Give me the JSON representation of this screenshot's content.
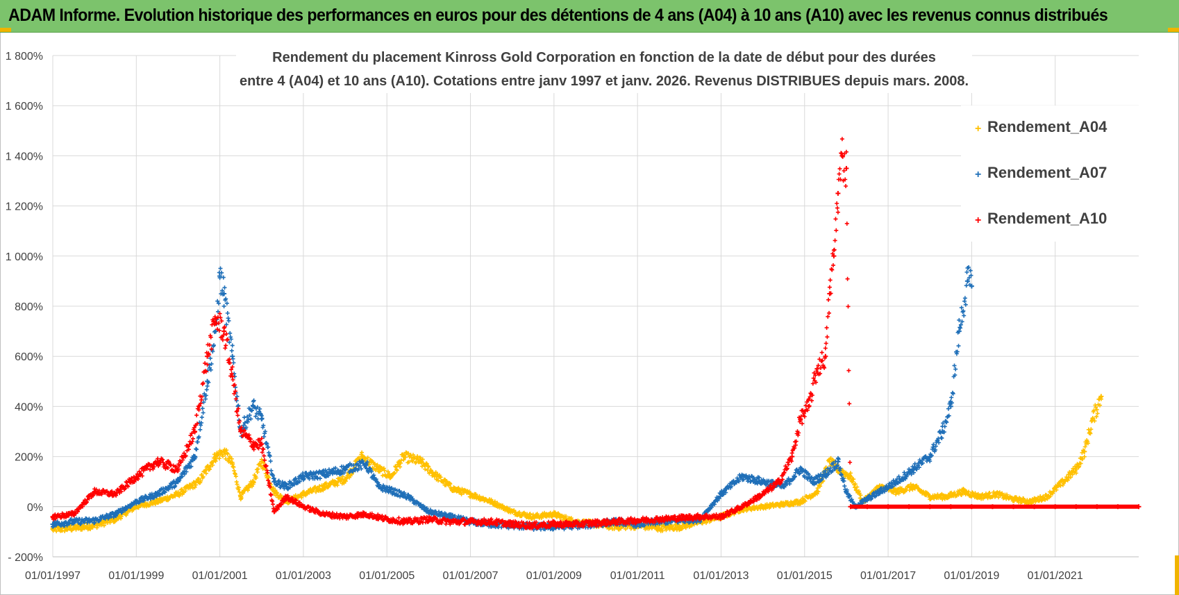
{
  "banner": {
    "title": "ADAM Informe. Evolution historique des performances en euros pour des détentions de 4 ans (A04) à 10 ans (A10) avec les revenus connus distribués"
  },
  "colors": {
    "banner": "#7cc36c",
    "corner": "#f0b400",
    "A04": "#ffc000",
    "A07": "#1f6fb8",
    "A10": "#ff0000",
    "grid": "#d9d9d9",
    "text": "#404040"
  },
  "chart_data": {
    "type": "scatter",
    "title_line1": "Rendement du placement Kinross Gold Corporation en fonction de la date de début pour des durées",
    "title_line2": "entre 4 (A04) et 10 ans (A10).  Cotations entre janv 1997 et janv. 2026. Revenus DISTRIBUES depuis mars. 2008.",
    "xlabel": "",
    "ylabel": "",
    "xlim": [
      1997.0,
      2023.0
    ],
    "ylim": [
      -200,
      1800
    ],
    "y_ticks": [
      -200,
      0,
      200,
      400,
      600,
      800,
      1000,
      1200,
      1400,
      1600,
      1800
    ],
    "y_tick_labels": [
      "- 200%",
      "0%",
      "200%",
      "400%",
      "600%",
      "800%",
      "1 000%",
      "1 200%",
      "1 400%",
      "1 600%",
      "1 800%"
    ],
    "x_ticks": [
      1997,
      1999,
      2001,
      2003,
      2005,
      2007,
      2009,
      2011,
      2013,
      2015,
      2017,
      2019,
      2021
    ],
    "x_tick_labels": [
      "01/01/1997",
      "01/01/1999",
      "01/01/2001",
      "01/01/2003",
      "01/01/2005",
      "01/01/2007",
      "01/01/2009",
      "01/01/2011",
      "01/01/2013",
      "01/01/2015",
      "01/01/2017",
      "01/01/2019",
      "01/01/2021"
    ],
    "legend_position": "right",
    "series": [
      {
        "name": "Rendement_A04",
        "marker": "+",
        "x": [
          1997.0,
          1997.5,
          1998.0,
          1998.5,
          1998.8,
          1999.0,
          1999.5,
          2000.0,
          2000.5,
          2000.9,
          2001.1,
          2001.3,
          2001.5,
          2001.8,
          2002.0,
          2002.3,
          2002.6,
          2003.0,
          2003.5,
          2004.0,
          2004.4,
          2004.8,
          2005.1,
          2005.4,
          2005.8,
          2006.2,
          2006.6,
          2007.0,
          2007.5,
          2008.0,
          2008.5,
          2009.0,
          2009.5,
          2010.0,
          2010.5,
          2011.0,
          2011.5,
          2012.0,
          2012.5,
          2013.0,
          2013.5,
          2014.0,
          2014.5,
          2014.9,
          2015.3,
          2015.6,
          2015.8,
          2016.1,
          2016.4,
          2016.8,
          2017.2,
          2017.6,
          2018.0,
          2018.4,
          2018.8,
          2019.2,
          2019.6,
          2020.0,
          2020.4,
          2020.8,
          2021.2,
          2021.5,
          2021.7,
          2021.9,
          2022.1
        ],
        "y": [
          -90,
          -85,
          -75,
          -50,
          -20,
          0,
          20,
          50,
          100,
          200,
          220,
          170,
          40,
          100,
          180,
          60,
          20,
          50,
          80,
          110,
          200,
          150,
          120,
          200,
          180,
          120,
          70,
          50,
          20,
          -20,
          -40,
          -30,
          -60,
          -70,
          -80,
          -75,
          -85,
          -80,
          -60,
          -40,
          -10,
          0,
          10,
          20,
          60,
          180,
          150,
          120,
          20,
          80,
          60,
          80,
          40,
          40,
          60,
          40,
          50,
          30,
          20,
          40,
          100,
          150,
          220,
          350,
          440
        ]
      },
      {
        "name": "Rendement_A07",
        "marker": "+",
        "x": [
          1997.0,
          1997.5,
          1998.0,
          1998.5,
          1999.0,
          1999.5,
          2000.0,
          2000.4,
          2000.7,
          2000.9,
          2001.0,
          2001.1,
          2001.3,
          2001.5,
          2001.8,
          2002.0,
          2002.3,
          2002.6,
          2003.0,
          2003.5,
          2004.0,
          2004.5,
          2004.8,
          2005.0,
          2005.5,
          2006.0,
          2006.5,
          2007.0,
          2007.5,
          2008.0,
          2008.5,
          2009.0,
          2009.5,
          2010.0,
          2010.5,
          2011.0,
          2011.5,
          2012.0,
          2012.5,
          2013.0,
          2013.5,
          2014.0,
          2014.5,
          2014.9,
          2015.2,
          2015.5,
          2015.8,
          2016.0,
          2016.2,
          2016.5,
          2016.8,
          2017.2,
          2017.6,
          2018.0,
          2018.3,
          2018.5,
          2018.7,
          2018.9,
          2019.0
        ],
        "y": [
          -70,
          -60,
          -55,
          -30,
          20,
          50,
          100,
          200,
          500,
          700,
          920,
          850,
          600,
          300,
          400,
          350,
          100,
          80,
          120,
          130,
          150,
          170,
          80,
          70,
          40,
          -20,
          -40,
          -60,
          -70,
          -75,
          -80,
          -80,
          -75,
          -70,
          -60,
          -70,
          -60,
          -55,
          -50,
          50,
          120,
          100,
          80,
          150,
          100,
          130,
          180,
          60,
          0,
          30,
          60,
          100,
          150,
          200,
          300,
          400,
          700,
          900,
          880
        ]
      },
      {
        "name": "Rendement_A10",
        "marker": "+",
        "x": [
          1997.0,
          1997.5,
          1998.0,
          1998.5,
          1999.0,
          1999.5,
          2000.0,
          2000.4,
          2000.7,
          2000.9,
          2001.1,
          2001.3,
          2001.5,
          2001.8,
          2002.0,
          2002.3,
          2002.6,
          2003.0,
          2003.5,
          2004.0,
          2004.5,
          2005.0,
          2005.5,
          2006.0,
          2006.5,
          2007.0,
          2007.5,
          2008.0,
          2008.5,
          2009.0,
          2009.5,
          2010.0,
          2010.5,
          2011.0,
          2011.5,
          2012.0,
          2012.5,
          2013.0,
          2013.5,
          2014.0,
          2014.4,
          2014.7,
          2014.9,
          2015.1,
          2015.3,
          2015.5,
          2015.6,
          2015.7,
          2015.8,
          2015.9,
          2016.0,
          2016.1,
          2016.5,
          2017.0,
          2017.5,
          2018.0,
          2018.5,
          2019.0,
          2019.5,
          2020.0,
          2020.5,
          2021.0,
          2021.5,
          2022.0,
          2022.5,
          2023.0
        ],
        "y": [
          -40,
          -30,
          60,
          50,
          120,
          180,
          150,
          300,
          600,
          750,
          700,
          520,
          300,
          250,
          250,
          -20,
          40,
          0,
          -30,
          -40,
          -30,
          -50,
          -60,
          -50,
          -60,
          -60,
          -60,
          -70,
          -75,
          -70,
          -70,
          -65,
          -60,
          -55,
          -50,
          -45,
          -40,
          -40,
          0,
          50,
          100,
          200,
          350,
          400,
          550,
          600,
          850,
          1000,
          1250,
          1400,
          1350,
          0,
          0,
          0,
          0,
          0,
          0,
          0,
          0,
          0,
          0,
          0,
          0,
          0,
          0,
          0
        ]
      }
    ]
  }
}
